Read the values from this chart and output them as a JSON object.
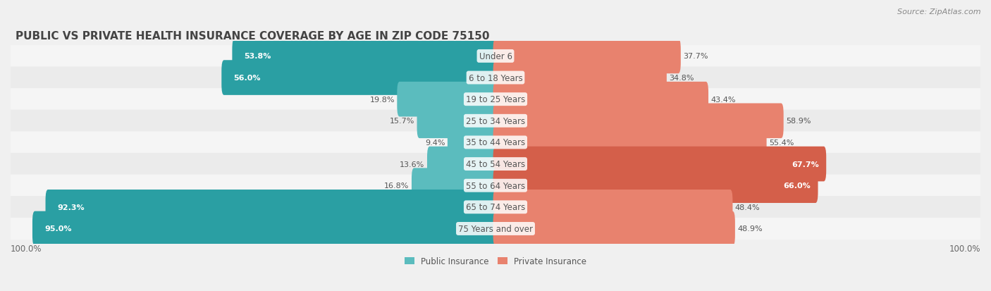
{
  "title": "PUBLIC VS PRIVATE HEALTH INSURANCE COVERAGE BY AGE IN ZIP CODE 75150",
  "source": "Source: ZipAtlas.com",
  "categories": [
    "Under 6",
    "6 to 18 Years",
    "19 to 25 Years",
    "25 to 34 Years",
    "35 to 44 Years",
    "45 to 54 Years",
    "55 to 64 Years",
    "65 to 74 Years",
    "75 Years and over"
  ],
  "public_values": [
    53.8,
    56.0,
    19.8,
    15.7,
    9.4,
    13.6,
    16.8,
    92.3,
    95.0
  ],
  "private_values": [
    37.7,
    34.8,
    43.4,
    58.9,
    55.4,
    67.7,
    66.0,
    48.4,
    48.9
  ],
  "public_color": "#5bbcbe",
  "private_color": "#e8826e",
  "public_color_dark": "#2a9fa3",
  "private_color_dark": "#d45f4a",
  "background_color": "#f0f0f0",
  "bar_bg_color": "#e8e8e8",
  "row_bg_color": "#f5f5f5",
  "row_alt_color": "#ebebeb",
  "axis_label_left": "100.0%",
  "axis_label_right": "100.0%",
  "legend_public": "Public Insurance",
  "legend_private": "Private Insurance",
  "title_fontsize": 11,
  "label_fontsize": 8.5,
  "value_fontsize": 8.0,
  "category_fontsize": 8.5
}
